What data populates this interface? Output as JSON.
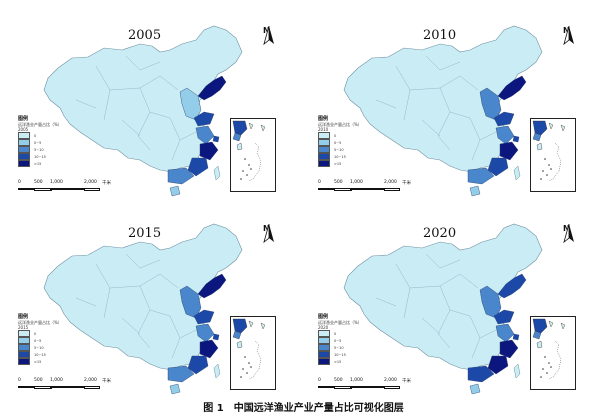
{
  "caption": "图 1　中国远洋渔业产业产量占比可视化图层",
  "north_label": "N",
  "legend_title": "图例",
  "legend_subtitle": "远洋渔业产量占比（%）",
  "legend_ranges": [
    "0",
    "0~5",
    "5~10",
    "10~15",
    ">15"
  ],
  "legend_colors": [
    "#c9ecf5",
    "#93cdea",
    "#4a86cc",
    "#1c49a8",
    "#0b167e"
  ],
  "base_color": "#c9ecf5",
  "scale_labels": [
    "0",
    "500",
    "1,000",
    "2,000"
  ],
  "scale_unit": "千米",
  "panels": [
    {
      "year": "2005",
      "province_levels": {
        "liaoning": 4,
        "beijing": 3,
        "tianjin": 3,
        "hebei": 1,
        "shandong": 3,
        "jiangsu": 2,
        "shanghai": 3,
        "zhejiang": 4,
        "fujian": 3,
        "guangdong": 2,
        "hainan": 1
      }
    },
    {
      "year": "2010",
      "province_levels": {
        "liaoning": 4,
        "beijing": 1,
        "tianjin": 1,
        "hebei": 2,
        "shandong": 3,
        "jiangsu": 2,
        "shanghai": 3,
        "zhejiang": 4,
        "fujian": 3,
        "guangdong": 2,
        "hainan": 1
      }
    },
    {
      "year": "2015",
      "province_levels": {
        "liaoning": 4,
        "beijing": 4,
        "tianjin": 4,
        "hebei": 2,
        "shandong": 3,
        "jiangsu": 2,
        "shanghai": 3,
        "zhejiang": 4,
        "fujian": 3,
        "guangdong": 2,
        "hainan": 1
      }
    },
    {
      "year": "2020",
      "province_levels": {
        "liaoning": 3,
        "beijing": 2,
        "tianjin": 2,
        "hebei": 2,
        "shandong": 3,
        "jiangsu": 2,
        "shanghai": 3,
        "zhejiang": 4,
        "fujian": 4,
        "guangdong": 3,
        "hainan": 1
      }
    }
  ]
}
